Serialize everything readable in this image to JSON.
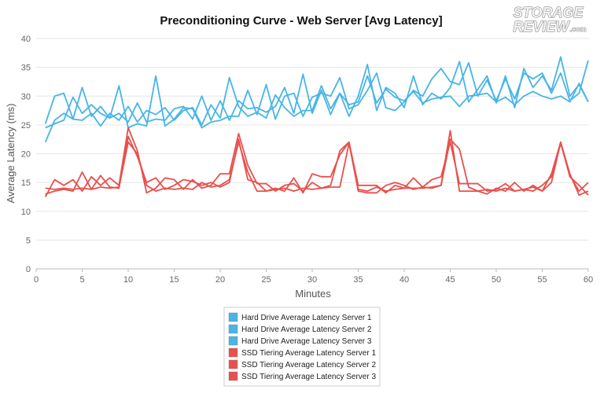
{
  "logo": {
    "line1": "STORAGE",
    "line2": "REVIEW",
    "suffix": ".com"
  },
  "chart_data": {
    "type": "line",
    "title": "Preconditioning Curve - Web Server [Avg Latency]",
    "xlabel": "Minutes",
    "ylabel": "Average Latency (ms)",
    "xlim": [
      0,
      60
    ],
    "ylim": [
      0,
      40
    ],
    "xticks": [
      0,
      5,
      10,
      15,
      20,
      25,
      30,
      35,
      40,
      45,
      50,
      55,
      60
    ],
    "yticks": [
      0,
      5,
      10,
      15,
      20,
      25,
      30,
      35,
      40
    ],
    "grid": true,
    "legend_position": "bottom",
    "x": [
      1,
      2,
      3,
      4,
      5,
      6,
      7,
      8,
      9,
      10,
      11,
      12,
      13,
      14,
      15,
      16,
      17,
      18,
      19,
      20,
      21,
      22,
      23,
      24,
      25,
      26,
      27,
      28,
      29,
      30,
      31,
      32,
      33,
      34,
      35,
      36,
      37,
      38,
      39,
      40,
      41,
      42,
      43,
      44,
      45,
      46,
      47,
      48,
      49,
      50,
      51,
      52,
      53,
      54,
      55,
      56,
      57,
      58,
      59,
      60
    ],
    "series": [
      {
        "name": "Hard Drive Average Latency Server 1",
        "color": "#47b5e6",
        "values": [
          22.0,
          25.8,
          27.0,
          26.0,
          31.5,
          26.5,
          28.2,
          26.2,
          27.0,
          25.5,
          28.8,
          25.5,
          26.0,
          25.8,
          27.8,
          28.2,
          26.0,
          30.0,
          25.8,
          29.2,
          25.8,
          29.2,
          27.8,
          28.0,
          27.2,
          28.2,
          31.5,
          27.0,
          33.8,
          27.0,
          31.0,
          26.8,
          30.5,
          28.5,
          29.0,
          33.5,
          28.8,
          31.2,
          29.8,
          29.2,
          30.8,
          28.8,
          29.5,
          29.8,
          30.0,
          28.2,
          30.0,
          30.2,
          30.5,
          29.0,
          29.8,
          28.5,
          30.0,
          30.8,
          30.0,
          29.5,
          30.0,
          29.0,
          32.2,
          29.0
        ]
      },
      {
        "name": "Hard Drive Average Latency Server 2",
        "color": "#47b5e6",
        "values": [
          25.2,
          30.0,
          30.5,
          26.0,
          25.8,
          27.0,
          24.8,
          27.0,
          25.8,
          28.2,
          25.5,
          27.5,
          26.8,
          28.0,
          25.8,
          27.5,
          28.0,
          25.0,
          28.5,
          26.2,
          33.2,
          28.2,
          26.5,
          27.2,
          26.2,
          30.2,
          28.0,
          26.5,
          27.5,
          27.5,
          31.8,
          27.8,
          30.5,
          26.5,
          30.0,
          35.5,
          27.5,
          31.5,
          30.5,
          28.0,
          33.5,
          28.5,
          30.5,
          29.5,
          31.5,
          36.0,
          29.0,
          31.2,
          33.5,
          28.8,
          33.5,
          28.0,
          34.8,
          31.5,
          33.5,
          31.0,
          36.8,
          30.0,
          32.0,
          29.0
        ]
      },
      {
        "name": "Hard Drive Average Latency Server 3",
        "color": "#47b5e6",
        "values": [
          24.5,
          25.2,
          25.8,
          29.8,
          27.0,
          28.5,
          27.0,
          26.2,
          31.8,
          24.5,
          25.2,
          24.8,
          33.5,
          24.8,
          26.0,
          28.0,
          27.8,
          24.5,
          25.5,
          25.8,
          26.5,
          26.5,
          31.0,
          26.8,
          32.0,
          26.0,
          30.0,
          30.5,
          26.5,
          29.8,
          30.5,
          30.0,
          33.2,
          27.8,
          28.5,
          31.0,
          34.0,
          28.0,
          27.5,
          29.0,
          31.0,
          30.0,
          33.0,
          34.8,
          32.5,
          32.0,
          35.8,
          30.0,
          32.8,
          29.2,
          33.0,
          29.5,
          34.0,
          33.0,
          34.0,
          30.5,
          34.0,
          29.2,
          30.5,
          36.2
        ]
      },
      {
        "name": "SSD Tiering Average Latency Server 1",
        "color": "#e8504c",
        "values": [
          12.5,
          15.5,
          14.5,
          15.5,
          13.5,
          16.0,
          14.5,
          15.8,
          14.5,
          24.5,
          20.5,
          13.2,
          14.0,
          15.8,
          15.5,
          13.8,
          15.5,
          14.0,
          14.5,
          16.5,
          16.5,
          23.5,
          18.0,
          14.8,
          14.8,
          13.5,
          14.5,
          14.8,
          13.5,
          15.0,
          14.0,
          14.5,
          20.5,
          22.0,
          13.5,
          13.2,
          13.2,
          14.5,
          15.0,
          14.5,
          13.8,
          14.2,
          14.0,
          14.5,
          24.0,
          13.5,
          13.5,
          13.5,
          13.0,
          14.0,
          13.5,
          15.0,
          13.5,
          14.5,
          13.5,
          16.5,
          22.0,
          16.0,
          14.5,
          12.8
        ]
      },
      {
        "name": "SSD Tiering Average Latency Server 2",
        "color": "#e8504c",
        "values": [
          14.0,
          13.8,
          14.0,
          13.8,
          14.0,
          13.8,
          14.2,
          14.0,
          14.2,
          22.0,
          20.0,
          14.5,
          13.5,
          14.0,
          13.8,
          14.0,
          13.8,
          15.0,
          14.2,
          14.5,
          15.5,
          22.0,
          16.8,
          13.5,
          13.5,
          13.8,
          14.0,
          13.5,
          14.0,
          13.8,
          14.0,
          14.2,
          14.2,
          21.8,
          13.8,
          13.5,
          14.2,
          13.5,
          13.8,
          14.0,
          14.0,
          14.0,
          14.2,
          14.5,
          22.5,
          20.8,
          14.2,
          13.5,
          13.8,
          13.5,
          14.0,
          13.5,
          13.8,
          13.5,
          14.5,
          16.0,
          21.8,
          16.2,
          13.5,
          15.0
        ]
      },
      {
        "name": "SSD Tiering Average Latency Server 3",
        "color": "#e8504c",
        "values": [
          13.0,
          13.5,
          13.8,
          13.5,
          16.8,
          13.8,
          16.2,
          14.2,
          14.0,
          23.0,
          19.5,
          15.0,
          15.8,
          13.8,
          14.5,
          15.5,
          15.2,
          14.5,
          15.0,
          14.2,
          15.0,
          22.5,
          15.5,
          15.0,
          13.5,
          14.0,
          13.5,
          15.8,
          13.2,
          16.5,
          16.0,
          16.0,
          19.8,
          22.0,
          14.5,
          14.5,
          14.5,
          13.2,
          14.5,
          14.0,
          15.8,
          14.2,
          15.5,
          16.0,
          22.0,
          14.8,
          14.8,
          14.8,
          13.5,
          13.8,
          14.8,
          13.5,
          13.8,
          14.2,
          13.5,
          15.0,
          22.0,
          16.5,
          12.8,
          13.5
        ]
      }
    ]
  }
}
